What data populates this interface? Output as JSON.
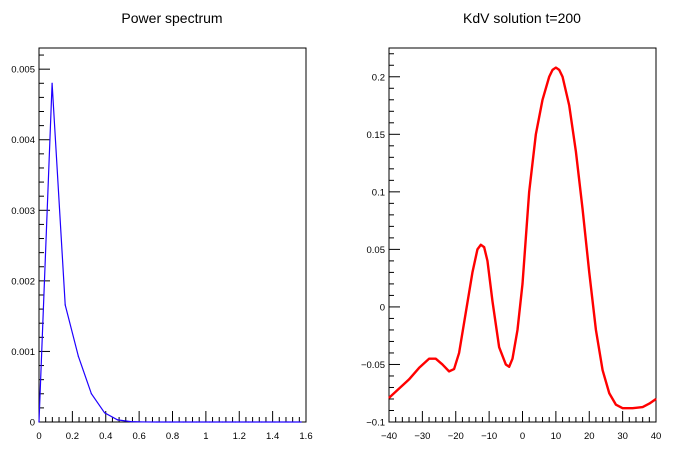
{
  "chart_data": [
    {
      "type": "line",
      "title": "Power spectrum",
      "xlabel": "",
      "ylabel": "",
      "xlim": [
        0,
        1.6
      ],
      "ylim": [
        0,
        0.0053
      ],
      "x_ticks": [
        0,
        0.2,
        0.4,
        0.6,
        0.8,
        1,
        1.2,
        1.4,
        1.6
      ],
      "x_tick_labels": [
        "0",
        "0.2",
        "0.4",
        "0.6",
        "0.8",
        "1",
        "1.2",
        "1.4",
        "1.6"
      ],
      "y_ticks": [
        0,
        0.001,
        0.002,
        0.003,
        0.004,
        0.005
      ],
      "y_tick_labels": [
        "0",
        "0.001",
        "0.002",
        "0.003",
        "0.004",
        "0.005"
      ],
      "grid": false,
      "line_color": "#1f00ff",
      "series": [
        {
          "x": [
            0,
            0.0785,
            0.157,
            0.236,
            0.314,
            0.393,
            0.471,
            0.55,
            0.628,
            0.707,
            0.785,
            0.864,
            0.942,
            1.021,
            1.1,
            1.178,
            1.257,
            1.335,
            1.414,
            1.492,
            1.571
          ],
          "values": [
            0,
            0.0048,
            0.00166,
            0.00093,
            0.0004,
            0.00013,
            3e-05,
            5e-06,
            1e-06,
            0,
            0,
            0,
            0,
            0,
            0,
            0,
            0,
            0,
            0,
            0,
            0
          ]
        }
      ]
    },
    {
      "type": "line",
      "title": "KdV solution t=200",
      "xlabel": "",
      "ylabel": "",
      "xlim": [
        -40,
        40
      ],
      "ylim": [
        -0.1,
        0.225
      ],
      "x_ticks": [
        -40,
        -30,
        -20,
        -10,
        0,
        10,
        20,
        30,
        40
      ],
      "x_tick_labels": [
        "−40",
        "−30",
        "−20",
        "−10",
        "0",
        "10",
        "20",
        "30",
        "40"
      ],
      "y_ticks": [
        -0.1,
        -0.05,
        0,
        0.05,
        0.1,
        0.15,
        0.2
      ],
      "y_tick_labels": [
        "−0.1",
        "−0.05",
        "0",
        "0.05",
        "0.1",
        "0.15",
        "0.2"
      ],
      "grid": false,
      "line_color": "#ff0000",
      "series": [
        {
          "x": [
            -40,
            -37,
            -34,
            -31,
            -28,
            -26,
            -24,
            -22,
            -20.5,
            -19,
            -17,
            -15,
            -13.5,
            -12.5,
            -11.5,
            -10.5,
            -9,
            -7,
            -5,
            -4,
            -3,
            -1.5,
            0,
            2,
            4,
            6,
            8,
            9,
            10,
            11,
            12,
            14,
            16,
            18,
            20,
            22,
            24,
            26,
            28,
            30,
            33,
            36,
            38,
            40
          ],
          "values": [
            -0.079,
            -0.071,
            -0.063,
            -0.053,
            -0.045,
            -0.045,
            -0.05,
            -0.056,
            -0.054,
            -0.04,
            -0.005,
            0.03,
            0.05,
            0.054,
            0.052,
            0.04,
            0.005,
            -0.035,
            -0.05,
            -0.052,
            -0.045,
            -0.02,
            0.02,
            0.1,
            0.15,
            0.18,
            0.2,
            0.206,
            0.208,
            0.206,
            0.2,
            0.175,
            0.135,
            0.085,
            0.03,
            -0.02,
            -0.055,
            -0.075,
            -0.085,
            -0.088,
            -0.088,
            -0.087,
            -0.084,
            -0.08
          ]
        }
      ]
    }
  ]
}
